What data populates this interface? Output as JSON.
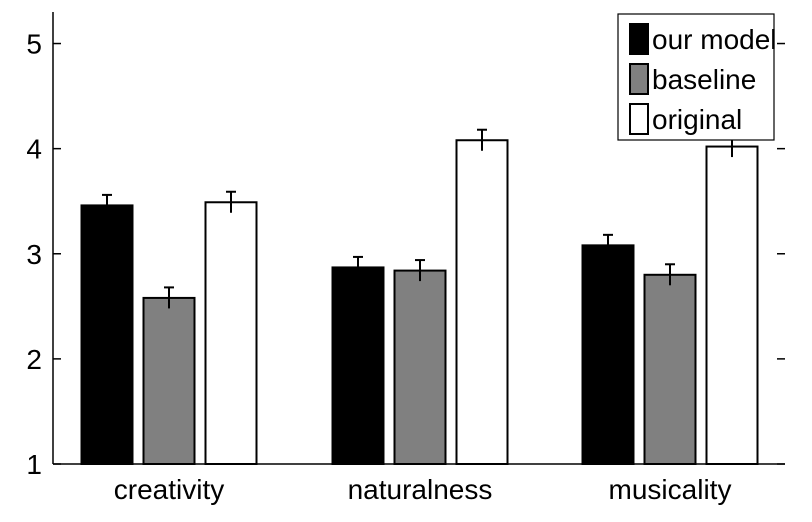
{
  "chart_data": {
    "type": "bar",
    "categories": [
      "creativity",
      "naturalness",
      "musicality"
    ],
    "series": [
      {
        "name": "our model",
        "values": [
          3.46,
          2.87,
          3.08
        ],
        "errors": [
          0.1,
          0.1,
          0.1
        ],
        "color": "#000000"
      },
      {
        "name": "baseline",
        "values": [
          2.58,
          2.84,
          2.8
        ],
        "errors": [
          0.1,
          0.1,
          0.1
        ],
        "color": "#808080"
      },
      {
        "name": "original",
        "values": [
          3.49,
          4.08,
          4.02
        ],
        "errors": [
          0.1,
          0.1,
          0.1
        ],
        "color": "#ffffff"
      }
    ],
    "ylim": [
      1,
      5.3
    ],
    "yticks": [
      1,
      2,
      3,
      4,
      5
    ],
    "ytick_labels": [
      "1",
      "2",
      "3",
      "4",
      "5"
    ],
    "legend_placement": "top-right",
    "grid": false
  }
}
